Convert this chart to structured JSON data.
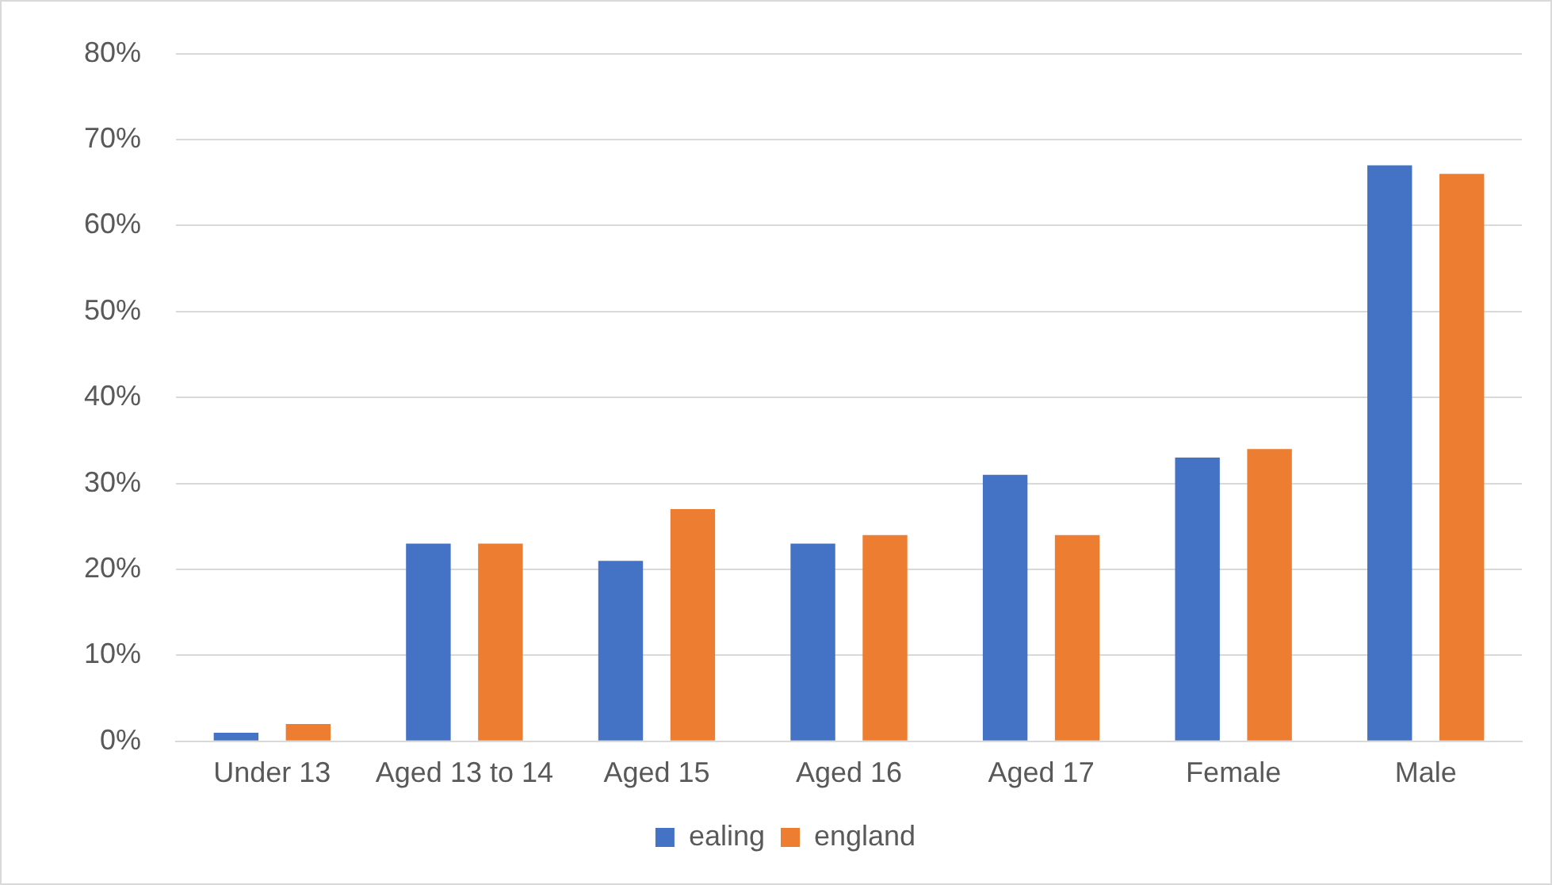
{
  "chart_data": {
    "type": "bar",
    "categories": [
      "Under 13",
      "Aged 13 to 14",
      "Aged 15",
      "Aged 16",
      "Aged 17",
      "Female",
      "Male"
    ],
    "series": [
      {
        "name": "ealing",
        "color": "#4472c4",
        "values": [
          1,
          23,
          21,
          23,
          31,
          33,
          67
        ]
      },
      {
        "name": "england",
        "color": "#ed7d31",
        "values": [
          2,
          23,
          27,
          24,
          24,
          34,
          66
        ]
      }
    ],
    "ylim": [
      0,
      80
    ],
    "yticks": [
      {
        "value": 0,
        "label": "0%"
      },
      {
        "value": 10,
        "label": "10%"
      },
      {
        "value": 20,
        "label": "20%"
      },
      {
        "value": 30,
        "label": "30%"
      },
      {
        "value": 40,
        "label": "40%"
      },
      {
        "value": 50,
        "label": "50%"
      },
      {
        "value": 60,
        "label": "60%"
      },
      {
        "value": 70,
        "label": "70%"
      },
      {
        "value": 80,
        "label": "80%"
      }
    ],
    "grid": "y",
    "legend": "bottom"
  }
}
